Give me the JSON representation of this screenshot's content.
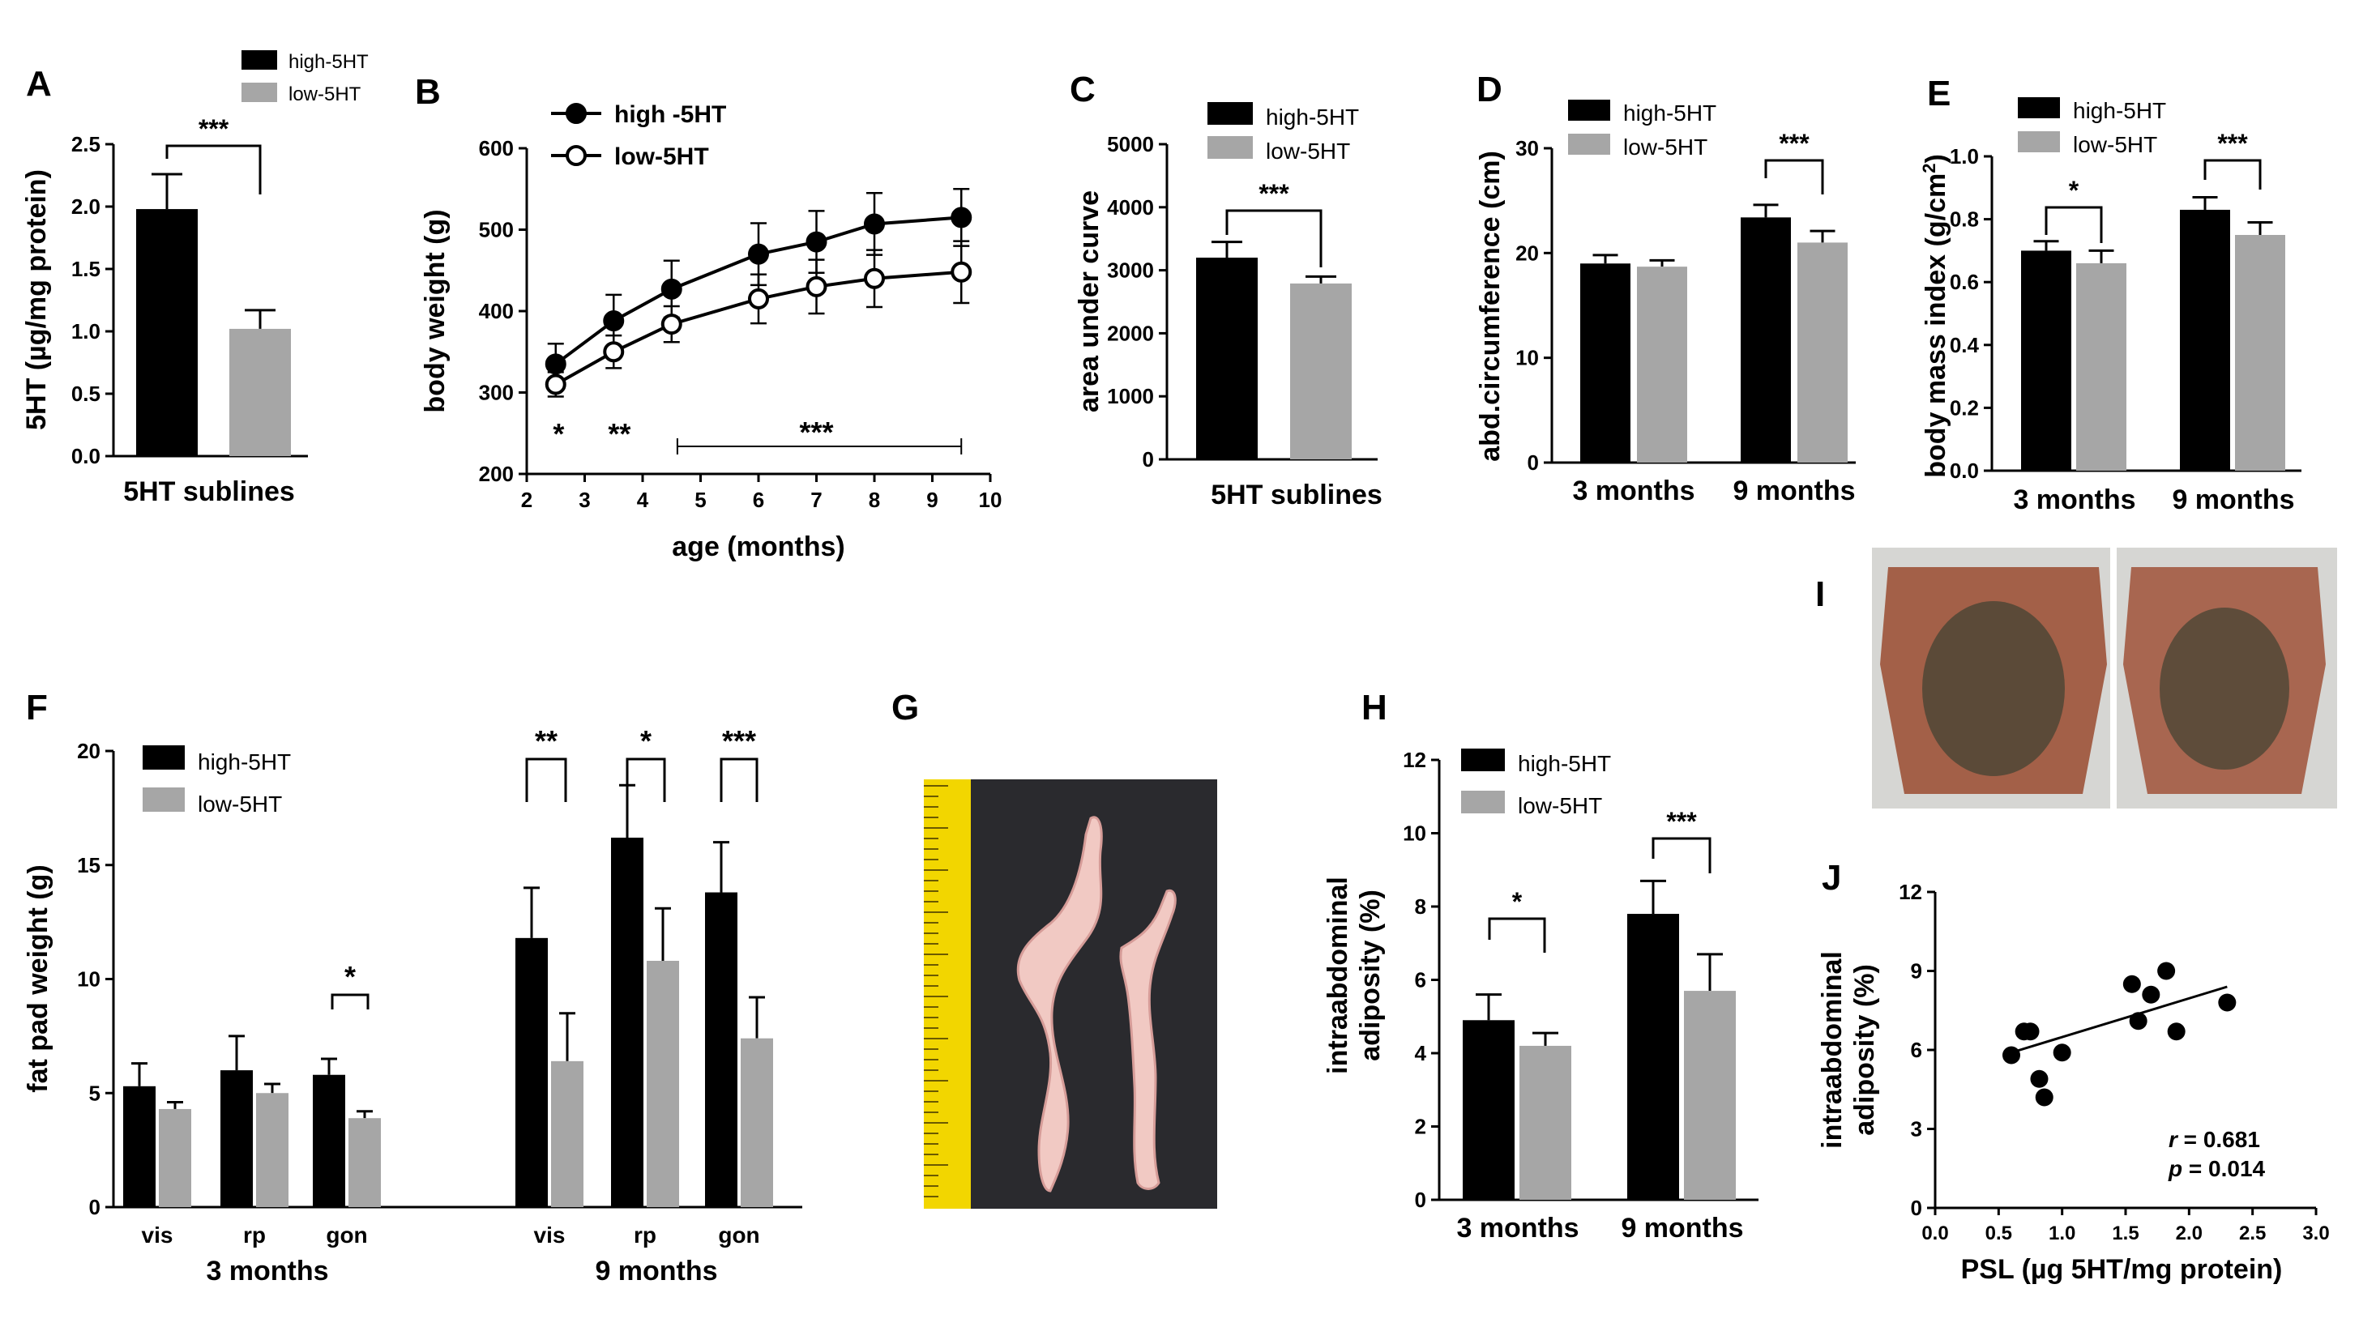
{
  "colors": {
    "high": "#000000",
    "low": "#a6a6a6",
    "axis": "#000000"
  },
  "chart_data": [
    {
      "panel": "A",
      "type": "bar",
      "title": "",
      "ylabel": "5HT (µg/mg protein)",
      "xlabel": "5HT sublines",
      "ylim": [
        0,
        2.5
      ],
      "yticks": [
        "0.0",
        "0.5",
        "1.0",
        "1.5",
        "2.0",
        "2.5"
      ],
      "legend": [
        "high-5HT",
        "low-5HT"
      ],
      "series": [
        {
          "name": "high-5HT",
          "values": [
            1.98
          ],
          "errors": [
            0.28
          ]
        },
        {
          "name": "low-5HT",
          "values": [
            1.02
          ],
          "errors": [
            0.15
          ]
        }
      ],
      "significance": [
        "***"
      ]
    },
    {
      "panel": "B",
      "type": "line",
      "xlabel": "age (months)",
      "ylabel": "body weight (g)",
      "xlim": [
        2,
        10
      ],
      "ylim": [
        200,
        600
      ],
      "xticks": [
        "2",
        "3",
        "4",
        "5",
        "6",
        "7",
        "8",
        "9",
        "10"
      ],
      "yticks": [
        "200",
        "300",
        "400",
        "500",
        "600"
      ],
      "legend": [
        "high -5HT",
        "low-5HT"
      ],
      "x": [
        2.5,
        3.5,
        4.5,
        6,
        7,
        8,
        9.5
      ],
      "series": [
        {
          "name": "high -5HT",
          "values": [
            335,
            388,
            427,
            470,
            485,
            507,
            515
          ],
          "errors": [
            25,
            32,
            35,
            38,
            38,
            38,
            35
          ]
        },
        {
          "name": "low-5HT",
          "values": [
            310,
            350,
            384,
            415,
            430,
            440,
            448
          ],
          "errors": [
            15,
            20,
            22,
            30,
            33,
            35,
            38
          ]
        }
      ],
      "significance": [
        "*",
        "**",
        "***"
      ]
    },
    {
      "panel": "C",
      "type": "bar",
      "ylabel": "area under curve",
      "xlabel": "5HT sublines",
      "ylim": [
        0,
        5000
      ],
      "yticks": [
        "0",
        "1000",
        "2000",
        "3000",
        "4000",
        "5000"
      ],
      "legend": [
        "high-5HT",
        "low-5HT"
      ],
      "series": [
        {
          "name": "high-5HT",
          "values": [
            3200
          ],
          "errors": [
            250
          ]
        },
        {
          "name": "low-5HT",
          "values": [
            2790
          ],
          "errors": [
            110
          ]
        }
      ],
      "significance": [
        "***"
      ]
    },
    {
      "panel": "D",
      "type": "bar",
      "ylabel": "abd.circumference (cm)",
      "categories": [
        "3 months",
        "9 months"
      ],
      "ylim": [
        0,
        30
      ],
      "yticks": [
        "0",
        "10",
        "20",
        "30"
      ],
      "legend": [
        "high-5HT",
        "low-5HT"
      ],
      "series": [
        {
          "name": "high-5HT",
          "values": [
            19.0,
            23.4
          ],
          "errors": [
            0.8,
            1.2
          ]
        },
        {
          "name": "low-5HT",
          "values": [
            18.7,
            21.0
          ],
          "errors": [
            0.6,
            1.1
          ]
        }
      ],
      "significance": [
        "***"
      ]
    },
    {
      "panel": "E",
      "type": "bar",
      "ylabel": "body mass index (g/cm",
      "ylabel_sup": "2",
      "ylabel_end": ")",
      "categories": [
        "3 months",
        "9 months"
      ],
      "ylim": [
        0,
        1.0
      ],
      "yticks": [
        "0.0",
        "0.2",
        "0.4",
        "0.6",
        "0.8",
        "1.0"
      ],
      "legend": [
        "high-5HT",
        "low-5HT"
      ],
      "series": [
        {
          "name": "high-5HT",
          "values": [
            0.7,
            0.83
          ],
          "errors": [
            0.03,
            0.04
          ]
        },
        {
          "name": "low-5HT",
          "values": [
            0.66,
            0.75
          ],
          "errors": [
            0.04,
            0.04
          ]
        }
      ],
      "significance": [
        "*",
        "***"
      ]
    },
    {
      "panel": "F",
      "type": "bar",
      "ylabel": "fat pad weight (g)",
      "groups": [
        "3 months",
        "9 months"
      ],
      "categories": [
        "vis",
        "rp",
        "gon",
        "vis",
        "rp",
        "gon"
      ],
      "ylim": [
        0,
        20
      ],
      "yticks": [
        "0",
        "5",
        "10",
        "15",
        "20"
      ],
      "legend": [
        "high-5HT",
        "low-5HT"
      ],
      "series": [
        {
          "name": "high-5HT",
          "values": [
            5.3,
            6.0,
            5.8,
            11.8,
            16.2,
            13.8
          ],
          "errors": [
            1.0,
            1.5,
            0.7,
            2.2,
            2.3,
            2.2
          ]
        },
        {
          "name": "low-5HT",
          "values": [
            4.3,
            5.0,
            3.9,
            6.4,
            10.8,
            7.4
          ],
          "errors": [
            0.3,
            0.4,
            0.3,
            2.1,
            2.3,
            1.8
          ]
        }
      ],
      "significance": [
        "*",
        "**",
        "*",
        "***"
      ]
    },
    {
      "panel": "H",
      "type": "bar",
      "ylabel": "intraabdominal",
      "ylabel2": "adiposity (%)",
      "categories": [
        "3 months",
        "9 months"
      ],
      "ylim": [
        0,
        12
      ],
      "yticks": [
        "0",
        "2",
        "4",
        "6",
        "8",
        "10",
        "12"
      ],
      "legend": [
        "high-5HT",
        "low-5HT"
      ],
      "series": [
        {
          "name": "high-5HT",
          "values": [
            4.9,
            7.8
          ],
          "errors": [
            0.7,
            0.9
          ]
        },
        {
          "name": "low-5HT",
          "values": [
            4.2,
            5.7
          ],
          "errors": [
            0.35,
            1.0
          ]
        }
      ],
      "significance": [
        "*",
        "***"
      ]
    },
    {
      "panel": "J",
      "type": "scatter",
      "xlabel": "PSL (µg 5HT/mg protein)",
      "ylabel": "intraabdominal",
      "ylabel2": "adiposity (%)",
      "xlim": [
        0,
        3.0
      ],
      "ylim": [
        0,
        12
      ],
      "xticks": [
        "0.0",
        "0.5",
        "1.0",
        "1.5",
        "2.0",
        "2.5",
        "3.0"
      ],
      "yticks": [
        "0",
        "3",
        "6",
        "9",
        "12"
      ],
      "x": [
        0.6,
        0.7,
        0.75,
        0.82,
        0.86,
        1.0,
        1.55,
        1.6,
        1.7,
        1.82,
        1.9,
        2.3
      ],
      "y": [
        5.8,
        6.7,
        6.7,
        4.9,
        4.2,
        5.9,
        8.5,
        7.1,
        8.1,
        9.0,
        6.7,
        7.8
      ],
      "fit": {
        "x": [
          0.6,
          2.3
        ],
        "y": [
          5.9,
          8.4
        ]
      },
      "stats": {
        "r_label": "r",
        "r_value": " = 0.681",
        "p_label": "p",
        "p_value": " = 0.014"
      }
    }
  ],
  "panels": {
    "A": "A",
    "B": "B",
    "C": "C",
    "D": "D",
    "E": "E",
    "F": "F",
    "G": "G",
    "H": "H",
    "I": "I",
    "J": "J"
  },
  "photos": {
    "G": "fat pad photo with ruler",
    "I": "dissected abdominal cavity photos"
  }
}
